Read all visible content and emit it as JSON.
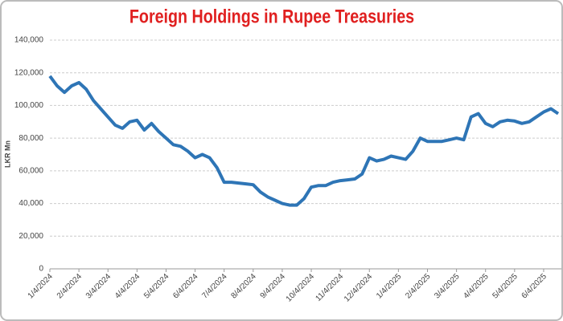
{
  "chart_data": {
    "type": "line",
    "title": "Foreign Holdings in Rupee Treasuries",
    "y_label": "LKR Mn",
    "categories": [
      "1/4/2024",
      null,
      null,
      null,
      "2/4/2024",
      null,
      null,
      null,
      "3/4/2024",
      null,
      null,
      null,
      "4/4/2024",
      null,
      null,
      null,
      "5/4/2024",
      null,
      null,
      null,
      "6/4/2024",
      null,
      null,
      null,
      "7/4/2024",
      null,
      null,
      null,
      "8/4/2024",
      null,
      null,
      null,
      "9/4/2024",
      null,
      null,
      null,
      "10/4/2024",
      null,
      null,
      null,
      "11/4/2024",
      null,
      null,
      null,
      "12/4/2024",
      null,
      null,
      null,
      "1/4/2025",
      null,
      null,
      null,
      "2/4/2025",
      null,
      null,
      null,
      "3/4/2025",
      null,
      null,
      null,
      "4/4/2025",
      null,
      null,
      null,
      "5/4/2025",
      null,
      null,
      null,
      "6/4/2025",
      null,
      null
    ],
    "series": [
      {
        "name": "Foreign Holdings",
        "color": "#2e75b6",
        "values": [
          118000,
          112000,
          108000,
          112000,
          114000,
          110000,
          103000,
          98000,
          93000,
          88000,
          86000,
          90000,
          91000,
          85000,
          89000,
          84000,
          80000,
          76000,
          75000,
          72000,
          68000,
          70000,
          68000,
          62000,
          53000,
          53000,
          52500,
          52000,
          51500,
          47000,
          44000,
          42000,
          40000,
          39000,
          39000,
          43000,
          50000,
          51000,
          51000,
          53000,
          54000,
          54500,
          55000,
          58000,
          68000,
          66000,
          67000,
          69000,
          68000,
          67000,
          72000,
          80000,
          78000,
          78000,
          78000,
          79000,
          80000,
          79000,
          93000,
          95000,
          89000,
          87000,
          90000,
          91000,
          90500,
          89000,
          90000,
          93000,
          96000,
          98000,
          95000
        ]
      }
    ],
    "ylim": [
      0,
      140000
    ],
    "yticks": [
      0,
      {
        "value": 20000,
        "label": "20,000"
      },
      {
        "value": 40000,
        "label": "40,000"
      },
      {
        "value": 60000,
        "label": "60,000"
      },
      {
        "value": 80000,
        "label": "80,000"
      },
      {
        "value": 100000,
        "label": "100,000"
      },
      {
        "value": 120000,
        "label": "120,000"
      },
      {
        "value": 140000,
        "label": "140,000"
      }
    ],
    "grid": true
  }
}
